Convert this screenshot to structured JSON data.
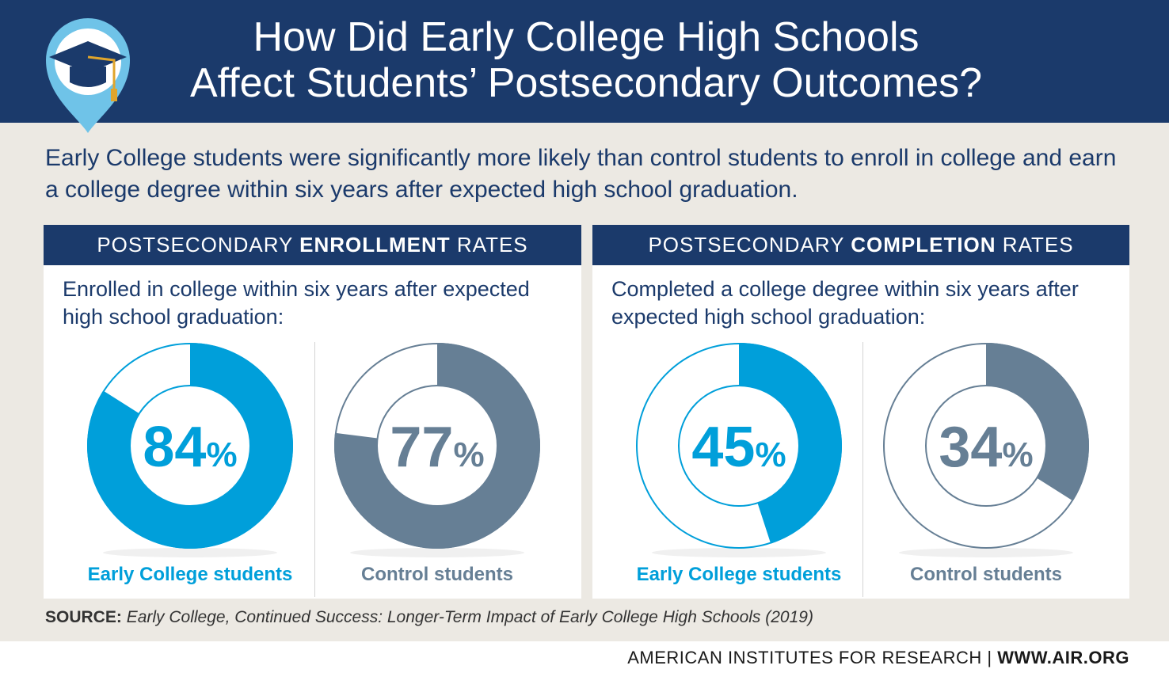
{
  "title_line1": "How Did Early College High Schools",
  "title_line2": "Affect Students’ Postsecondary Outcomes?",
  "subtitle": "Early College students were significantly more likely than control students to enroll in college and earn a college degree within six years after expected high school graduation.",
  "panels": [
    {
      "header_prefix": "POSTSECONDARY ",
      "header_bold": "ENROLLMENT",
      "header_suffix": " RATES",
      "description": "Enrolled in college within six years after expected high school graduation:"
    },
    {
      "header_prefix": "POSTSECONDARY ",
      "header_bold": "COMPLETION",
      "header_suffix": " RATES",
      "description": "Completed a college degree within six years after expected high school graduation:"
    }
  ],
  "colors": {
    "navy": "#1b3a6b",
    "early_college": "#009fda",
    "control": "#667f95",
    "background": "#ece9e3"
  },
  "chart_data": [
    {
      "type": "pie",
      "title": "POSTSECONDARY ENROLLMENT RATES",
      "categories": [
        "Early College students",
        "Control students"
      ],
      "values": [
        84,
        77
      ],
      "labels": [
        "84",
        "77"
      ],
      "unit": "%"
    },
    {
      "type": "pie",
      "title": "POSTSECONDARY COMPLETION RATES",
      "categories": [
        "Early College students",
        "Control students"
      ],
      "values": [
        45,
        34
      ],
      "labels": [
        "45",
        "34"
      ],
      "unit": "%"
    }
  ],
  "source_label": "SOURCE:",
  "source_text": "Early College, Continued Success: Longer-Term Impact of Early College High Schools (2019)",
  "footer_org": "AMERICAN INSTITUTES FOR RESEARCH",
  "footer_sep": " | ",
  "footer_url": "WWW.AIR.ORG"
}
